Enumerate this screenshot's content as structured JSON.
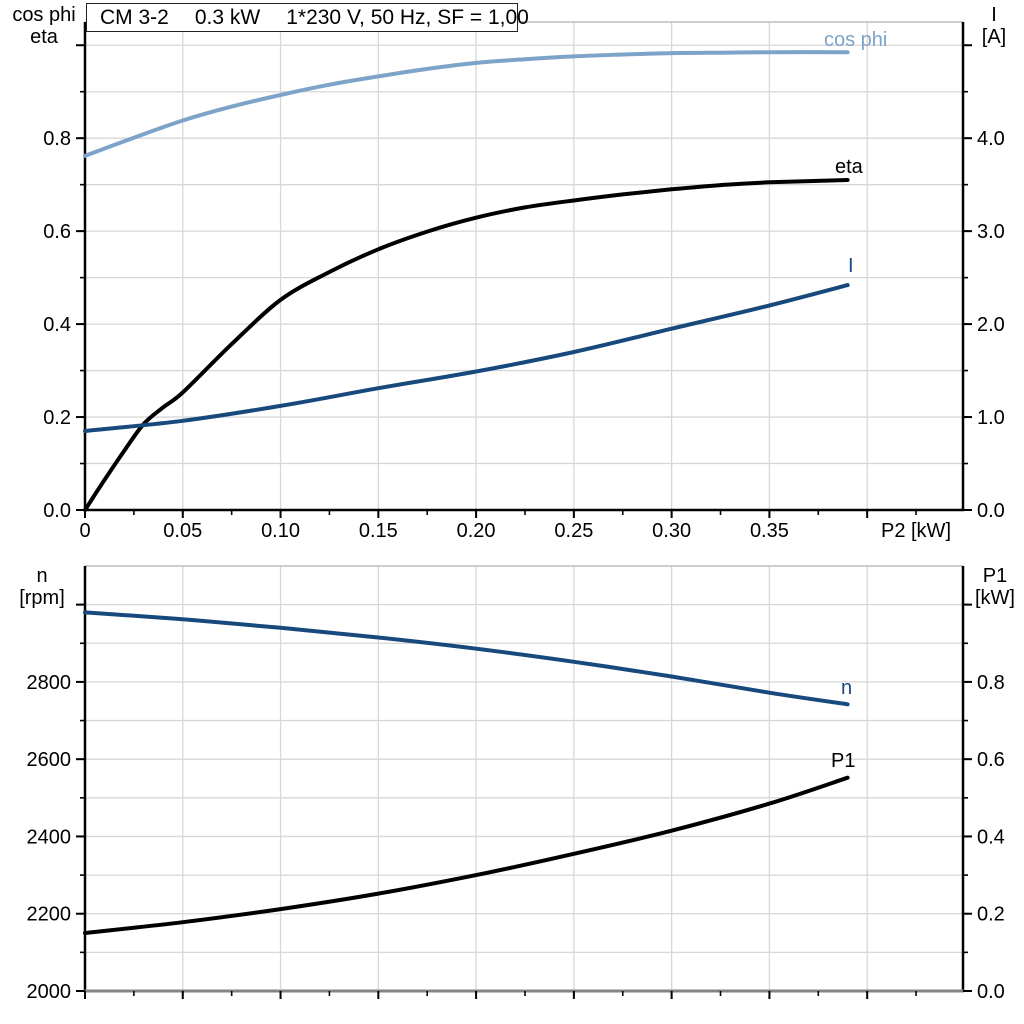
{
  "title": {
    "part1": "CM 3-2",
    "part2": "0.3 kW",
    "part3": "1*230 V, 50 Hz, SF = 1,00"
  },
  "axis_corner": {
    "top_left_1": "cos phi",
    "top_left_2": "eta",
    "top_right_1": "I",
    "top_right_2": "[A]",
    "bottom_left_1": "n",
    "bottom_left_2": "[rpm]",
    "bottom_right_1": "P1",
    "bottom_right_2": "[kW]",
    "x_axis": "P2 [kW]"
  },
  "labels": {
    "cos_phi": "cos phi",
    "eta": "eta",
    "current": "I",
    "speed": "n",
    "input_power": "P1"
  },
  "colors": {
    "light_blue": "#7EA3C9",
    "navy": "#17497D",
    "black": "#000000",
    "grid": "#D7D7D7"
  },
  "chart_data": [
    {
      "type": "line",
      "title": "CM 3-2  0.3 kW  1*230 V, 50 Hz, SF = 1,00",
      "xlabel": "P2 [kW]",
      "ylabel_left": "cos phi / eta",
      "ylabel_right": "I [A]",
      "xlim": [
        0,
        0.449
      ],
      "ylim_left": [
        0,
        1.05
      ],
      "ylim_right": [
        0,
        5.25
      ],
      "grid": true,
      "x_grid_step": 0.05,
      "x_minor_step": 0.025,
      "y_left_grid_step": 0.1,
      "y_right_minor_step": 0.5,
      "x_major_ticks": [
        0,
        0.05,
        0.1,
        0.15,
        0.2,
        0.25,
        0.3,
        0.35,
        0.4
      ],
      "x_tick_labels": [
        "0",
        "0.05",
        "0.10",
        "0.15",
        "0.20",
        "0.25",
        "0.30",
        "0.35",
        ""
      ],
      "y_left_major_ticks": [
        0,
        0.2,
        0.4,
        0.6,
        0.8,
        1.0
      ],
      "y_left_tick_labels": [
        "0.0",
        "0.2",
        "0.4",
        "0.6",
        "0.8",
        ""
      ],
      "y_right_major_ticks": [
        0,
        1,
        2,
        3,
        4,
        5
      ],
      "y_right_tick_labels": [
        "0.0",
        "1.0",
        "2.0",
        "3.0",
        "4.0",
        ""
      ],
      "series": [
        {
          "name": "cos phi",
          "axis": "left",
          "color": "#7EA3C9",
          "points": [
            [
              0,
              0.762
            ],
            [
              0.025,
              0.801
            ],
            [
              0.05,
              0.838
            ],
            [
              0.075,
              0.868
            ],
            [
              0.1,
              0.893
            ],
            [
              0.125,
              0.915
            ],
            [
              0.15,
              0.933
            ],
            [
              0.175,
              0.949
            ],
            [
              0.2,
              0.962
            ],
            [
              0.225,
              0.97
            ],
            [
              0.25,
              0.976
            ],
            [
              0.275,
              0.98
            ],
            [
              0.3,
              0.983
            ],
            [
              0.325,
              0.984
            ],
            [
              0.35,
              0.985
            ],
            [
              0.39,
              0.985
            ]
          ]
        },
        {
          "name": "eta",
          "axis": "left",
          "color": "#000000",
          "points": [
            [
              0,
              0
            ],
            [
              0.01,
              0.065
            ],
            [
              0.02,
              0.127
            ],
            [
              0.03,
              0.185
            ],
            [
              0.04,
              0.221
            ],
            [
              0.05,
              0.253
            ],
            [
              0.075,
              0.357
            ],
            [
              0.1,
              0.452
            ],
            [
              0.125,
              0.512
            ],
            [
              0.15,
              0.561
            ],
            [
              0.175,
              0.599
            ],
            [
              0.2,
              0.629
            ],
            [
              0.225,
              0.651
            ],
            [
              0.25,
              0.666
            ],
            [
              0.275,
              0.679
            ],
            [
              0.3,
              0.69
            ],
            [
              0.325,
              0.699
            ],
            [
              0.35,
              0.705
            ],
            [
              0.39,
              0.71
            ]
          ]
        },
        {
          "name": "I",
          "axis": "right",
          "color": "#17497D",
          "points": [
            [
              0,
              0.85
            ],
            [
              0.05,
              0.96
            ],
            [
              0.1,
              1.12
            ],
            [
              0.15,
              1.31
            ],
            [
              0.2,
              1.49
            ],
            [
              0.25,
              1.7
            ],
            [
              0.3,
              1.95
            ],
            [
              0.35,
              2.2
            ],
            [
              0.39,
              2.42
            ]
          ]
        }
      ]
    },
    {
      "type": "line",
      "title": "",
      "xlabel": "",
      "ylabel_left": "n [rpm]",
      "ylabel_right": "P1 [kW]",
      "xlim": [
        0,
        0.449
      ],
      "ylim_left": [
        2000,
        3100
      ],
      "ylim_right": [
        0,
        1.1
      ],
      "grid": true,
      "x_grid_step": 0.05,
      "x_minor_step": 0.025,
      "y_left_grid_step": 100,
      "y_right_minor_step": 0.1,
      "x_major_ticks": [
        0,
        0.05,
        0.1,
        0.15,
        0.2,
        0.25,
        0.3,
        0.35,
        0.4
      ],
      "x_tick_labels": [
        "",
        "",
        "",
        "",
        "",
        "",
        "",
        "",
        ""
      ],
      "y_left_major_ticks": [
        2000,
        2200,
        2400,
        2600,
        2800,
        3000
      ],
      "y_left_tick_labels": [
        "2000",
        "2200",
        "2400",
        "2600",
        "2800",
        ""
      ],
      "y_right_major_ticks": [
        0,
        0.2,
        0.4,
        0.6,
        0.8,
        1.0
      ],
      "y_right_tick_labels": [
        "0.0",
        "0.2",
        "0.4",
        "0.6",
        "0.8",
        ""
      ],
      "series": [
        {
          "name": "n",
          "axis": "left",
          "color": "#17497D",
          "points": [
            [
              0,
              2980
            ],
            [
              0.05,
              2962
            ],
            [
              0.1,
              2940
            ],
            [
              0.15,
              2915
            ],
            [
              0.2,
              2886
            ],
            [
              0.25,
              2852
            ],
            [
              0.3,
              2814
            ],
            [
              0.35,
              2772
            ],
            [
              0.39,
              2742
            ]
          ]
        },
        {
          "name": "P1",
          "axis": "right",
          "color": "#000000",
          "points": [
            [
              0,
              0.15
            ],
            [
              0.05,
              0.178
            ],
            [
              0.1,
              0.212
            ],
            [
              0.15,
              0.252
            ],
            [
              0.2,
              0.3
            ],
            [
              0.25,
              0.355
            ],
            [
              0.3,
              0.415
            ],
            [
              0.35,
              0.485
            ],
            [
              0.39,
              0.552
            ]
          ]
        }
      ]
    }
  ]
}
